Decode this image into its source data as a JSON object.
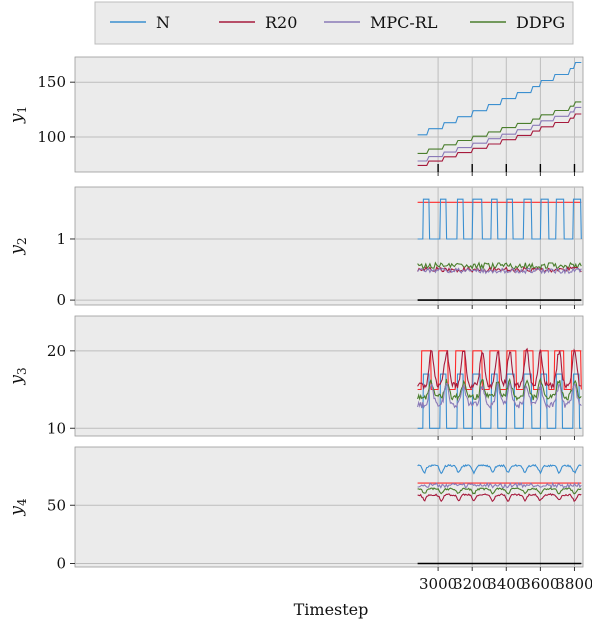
{
  "chart_data": {
    "type": "line",
    "xlabel": "Timestep",
    "x_range": [
      870,
      3850
    ],
    "x_ticks": [
      3000,
      3200,
      3400,
      3600,
      3800
    ],
    "legend": {
      "placement": "top-center",
      "entries": [
        "N",
        "R20",
        "MPC-RL",
        "DDPG"
      ]
    },
    "colors": {
      "N": "#3b8fd0",
      "R20": "#a61a3c",
      "MPC-RL": "#8a7ab8",
      "DDPG": "#4a7e2c",
      "reference": "#ff2a2a",
      "threshold": "#000000",
      "panel_bg": "#ebebeb",
      "grid": "#bdbdbd"
    },
    "grid": true,
    "panels": [
      {
        "ylabel": "y",
        "ysub": "1",
        "ylim": [
          68,
          173
        ],
        "yticks": [
          100,
          150
        ],
        "series": [
          {
            "name": "N",
            "style": "stair",
            "start": 102,
            "end": 168,
            "x_steps": [
              2940,
              3030,
              3110,
              3200,
              3290,
              3370,
              3460,
              3550,
              3600,
              3680,
              3770,
              3800
            ]
          },
          {
            "name": "DDPG",
            "style": "stair",
            "start": 85,
            "end": 132,
            "x_steps": [
              2940,
              3030,
              3110,
              3200,
              3290,
              3370,
              3460,
              3550,
              3600,
              3680,
              3770,
              3800
            ]
          },
          {
            "name": "MPC-RL",
            "style": "stair",
            "start": 78,
            "end": 127,
            "x_steps": [
              2940,
              3030,
              3110,
              3200,
              3290,
              3370,
              3460,
              3550,
              3600,
              3680,
              3770,
              3800
            ]
          },
          {
            "name": "R20",
            "style": "stair",
            "start": 74,
            "end": 121,
            "x_steps": [
              2940,
              3030,
              3110,
              3200,
              3290,
              3370,
              3460,
              3550,
              3600,
              3680,
              3770,
              3800
            ]
          }
        ],
        "threshold_ticks": [
          3000,
          3200,
          3400,
          3600,
          3800
        ]
      },
      {
        "ylabel": "y",
        "ysub": "2",
        "ylim": [
          -0.08,
          1.85
        ],
        "yticks": [
          0,
          1
        ],
        "series": [
          {
            "name": "reference",
            "style": "flat",
            "value": 1.6
          },
          {
            "name": "N",
            "style": "pulse",
            "low": 1.0,
            "high": 1.65,
            "pulses": [
              [
                2910,
                2950
              ],
              [
                3010,
                3050
              ],
              [
                3110,
                3150
              ],
              [
                3200,
                3260
              ],
              [
                3310,
                3350
              ],
              [
                3400,
                3440
              ],
              [
                3500,
                3550
              ],
              [
                3600,
                3650
              ],
              [
                3690,
                3740
              ],
              [
                3790,
                3840
              ]
            ]
          },
          {
            "name": "DDPG",
            "style": "noisy",
            "base": 0.56,
            "amp": 0.05
          },
          {
            "name": "R20",
            "style": "noisy",
            "base": 0.5,
            "amp": 0.04
          },
          {
            "name": "MPC-RL",
            "style": "noisy",
            "base": 0.48,
            "amp": 0.04
          },
          {
            "name": "threshold",
            "style": "flat",
            "value": 0
          }
        ]
      },
      {
        "ylabel": "y",
        "ysub": "3",
        "ylim": [
          9,
          24.5
        ],
        "yticks": [
          10,
          20
        ],
        "series": [
          {
            "name": "reference",
            "style": "pulse",
            "low": 15,
            "high": 20,
            "pulses": [
              [
                2900,
                2960
              ],
              [
                3000,
                3060
              ],
              [
                3100,
                3160
              ],
              [
                3200,
                3260
              ],
              [
                3300,
                3360
              ],
              [
                3400,
                3460
              ],
              [
                3500,
                3560
              ],
              [
                3600,
                3650
              ],
              [
                3680,
                3740
              ],
              [
                3780,
                3840
              ]
            ]
          },
          {
            "name": "N",
            "style": "pulse",
            "low": 10,
            "high": 17,
            "pulses": [
              [
                2910,
                2950
              ],
              [
                3010,
                3050
              ],
              [
                3110,
                3150
              ],
              [
                3200,
                3250
              ],
              [
                3310,
                3350
              ],
              [
                3400,
                3450
              ],
              [
                3500,
                3550
              ],
              [
                3600,
                3640
              ],
              [
                3690,
                3730
              ],
              [
                3790,
                3830
              ]
            ]
          },
          {
            "name": "R20",
            "style": "peaks",
            "base": 15.5,
            "amp": 4.5,
            "peaks": [
              2960,
              3050,
              3150,
              3260,
              3350,
              3420,
              3520,
              3600,
              3710,
              3800
            ]
          },
          {
            "name": "DDPG",
            "style": "peaks",
            "base": 14,
            "amp": 2,
            "peaks": [
              2960,
              3050,
              3150,
              3260,
              3350,
              3420,
              3520,
              3600,
              3710,
              3800
            ]
          },
          {
            "name": "MPC-RL",
            "style": "peaks",
            "base": 13,
            "amp": 2.5,
            "peaks": [
              2960,
              3050,
              3150,
              3260,
              3350,
              3420,
              3520,
              3600,
              3710,
              3800
            ]
          }
        ]
      },
      {
        "ylabel": "y",
        "ysub": "4",
        "ylim": [
          -3,
          100
        ],
        "yticks": [
          0,
          50
        ],
        "series": [
          {
            "name": "N",
            "style": "dips",
            "base": 84,
            "amp": 6,
            "dips": [
              2920,
              3020,
              3120,
              3210,
              3320,
              3410,
              3510,
              3600,
              3710,
              3800
            ]
          },
          {
            "name": "reference",
            "style": "flat",
            "value": 69
          },
          {
            "name": "MPC-RL",
            "style": "noisy",
            "base": 67,
            "amp": 2
          },
          {
            "name": "DDPG",
            "style": "dips",
            "base": 64,
            "amp": 4,
            "dips": [
              2920,
              3020,
              3120,
              3210,
              3320,
              3410,
              3510,
              3600,
              3710,
              3800
            ]
          },
          {
            "name": "R20",
            "style": "dips",
            "base": 59,
            "amp": 5,
            "dips": [
              2920,
              3020,
              3120,
              3210,
              3320,
              3410,
              3510,
              3600,
              3710,
              3800
            ]
          },
          {
            "name": "threshold",
            "style": "flat",
            "value": 0
          }
        ]
      }
    ]
  }
}
